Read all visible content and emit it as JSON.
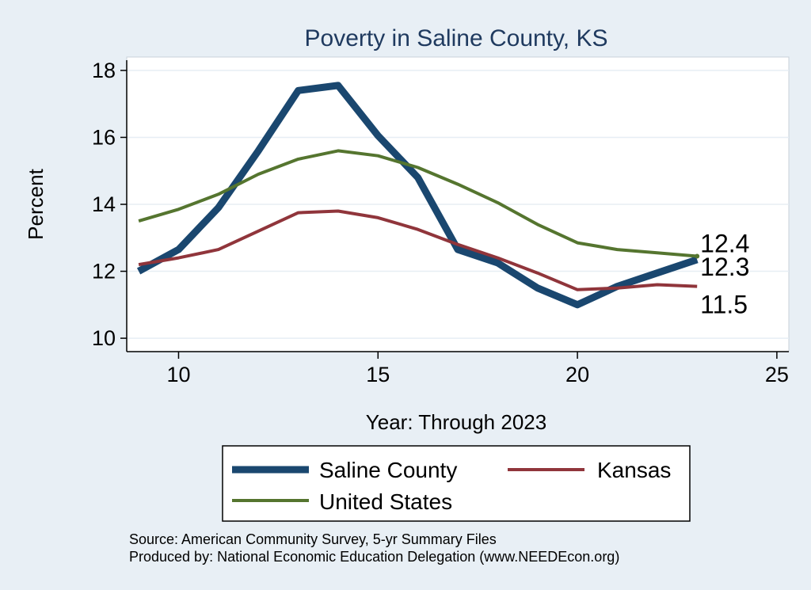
{
  "chart_data": {
    "type": "line",
    "title": "Poverty in Saline County, KS",
    "xlabel": "Year: Through 2023",
    "ylabel": "Percent",
    "xlim": [
      8.7,
      25.3
    ],
    "ylim": [
      9.6,
      18.4
    ],
    "xticks": [
      10,
      15,
      20,
      25
    ],
    "yticks": [
      10,
      12,
      14,
      16,
      18
    ],
    "x": [
      9,
      10,
      11,
      12,
      13,
      14,
      15,
      16,
      17,
      18,
      19,
      20,
      21,
      22,
      23
    ],
    "series": [
      {
        "name": "Saline County",
        "color": "#1a476f",
        "values": [
          12.0,
          12.65,
          13.9,
          15.6,
          17.4,
          17.55,
          16.05,
          14.8,
          12.65,
          12.25,
          11.5,
          11.0,
          11.55,
          11.95,
          12.35
        ],
        "end_label": "12.3"
      },
      {
        "name": "Kansas",
        "color": "#90353b",
        "values": [
          12.2,
          12.4,
          12.65,
          13.2,
          13.75,
          13.8,
          13.6,
          13.25,
          12.8,
          12.4,
          11.95,
          11.45,
          11.5,
          11.6,
          11.55
        ],
        "end_label": "11.5"
      },
      {
        "name": "United States",
        "color": "#55752f",
        "values": [
          13.5,
          13.85,
          14.3,
          14.9,
          15.35,
          15.6,
          15.45,
          15.1,
          14.6,
          14.05,
          13.4,
          12.85,
          12.65,
          12.55,
          12.45
        ],
        "end_label": "12.4"
      }
    ],
    "legend_position": "bottom",
    "source_line1": "Source: American Community Survey, 5-yr Summary Files",
    "source_line2": "Produced by: National Economic Education Delegation (www.NEEDEcon.org)"
  }
}
